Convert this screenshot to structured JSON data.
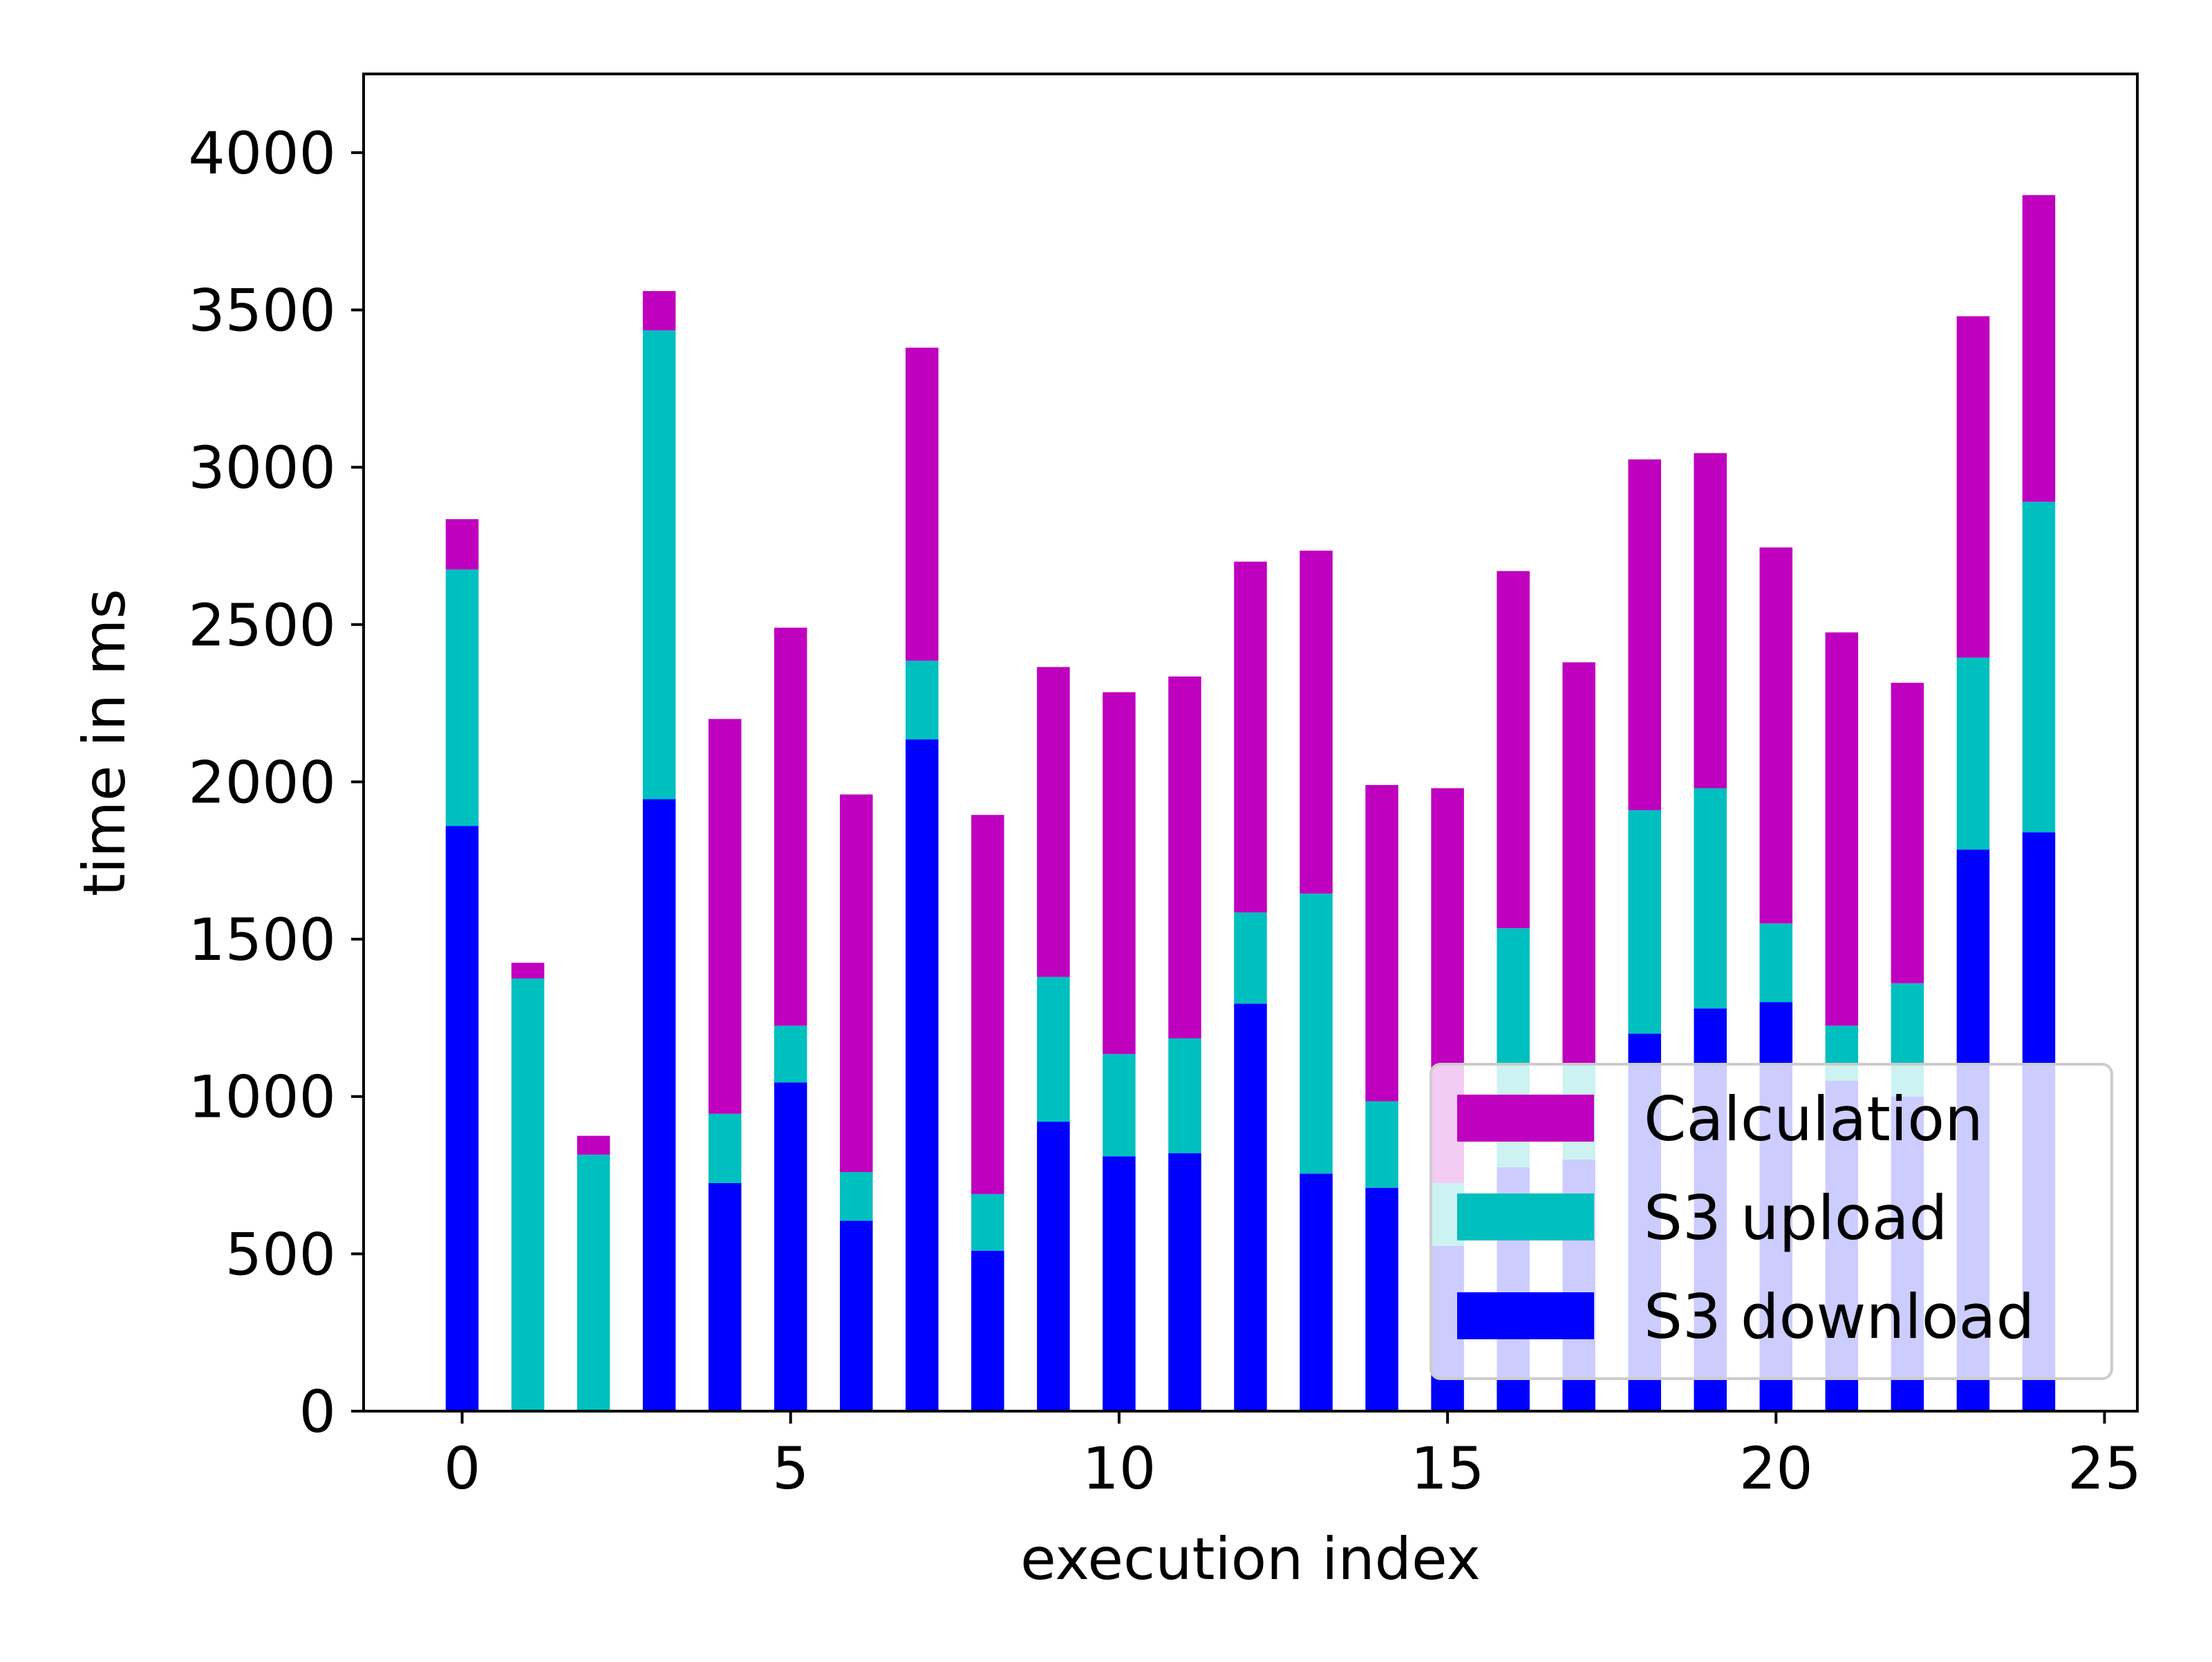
{
  "chart_data": {
    "type": "bar",
    "stacked": true,
    "title": "",
    "xlabel": "execution index",
    "ylabel": "time in ms",
    "x": [
      0,
      1,
      2,
      3,
      4,
      5,
      6,
      7,
      8,
      9,
      10,
      11,
      12,
      13,
      14,
      15,
      16,
      17,
      18,
      19,
      20,
      21,
      22,
      23,
      24
    ],
    "xlim": [
      -1.5,
      25.5
    ],
    "ylim": [
      0,
      4250
    ],
    "xticks": [
      0,
      5,
      10,
      15,
      20,
      25
    ],
    "yticks": [
      0,
      500,
      1000,
      1500,
      2000,
      2500,
      3000,
      3500,
      4000
    ],
    "grid": false,
    "legend_position": "lower-right",
    "series": [
      {
        "name": "S3 download",
        "color": "#0000ff",
        "values": [
          1860,
          0,
          0,
          1945,
          725,
          1045,
          605,
          2135,
          510,
          920,
          810,
          820,
          1295,
          755,
          710,
          525,
          775,
          800,
          1200,
          1280,
          1300,
          1050,
          1000,
          1785,
          1840
        ]
      },
      {
        "name": "S3 upload",
        "color": "#00bfbf",
        "values": [
          815,
          1375,
          815,
          1490,
          220,
          180,
          155,
          250,
          180,
          460,
          325,
          365,
          290,
          890,
          275,
          200,
          760,
          300,
          710,
          700,
          250,
          175,
          360,
          610,
          1050
        ]
      },
      {
        "name": "Calculation",
        "color": "#bf00bf",
        "values": [
          160,
          50,
          60,
          125,
          1255,
          1265,
          1200,
          995,
          1205,
          985,
          1150,
          1150,
          1115,
          1090,
          1005,
          1255,
          1135,
          1280,
          1115,
          1065,
          1195,
          1250,
          955,
          1085,
          975
        ]
      }
    ]
  }
}
